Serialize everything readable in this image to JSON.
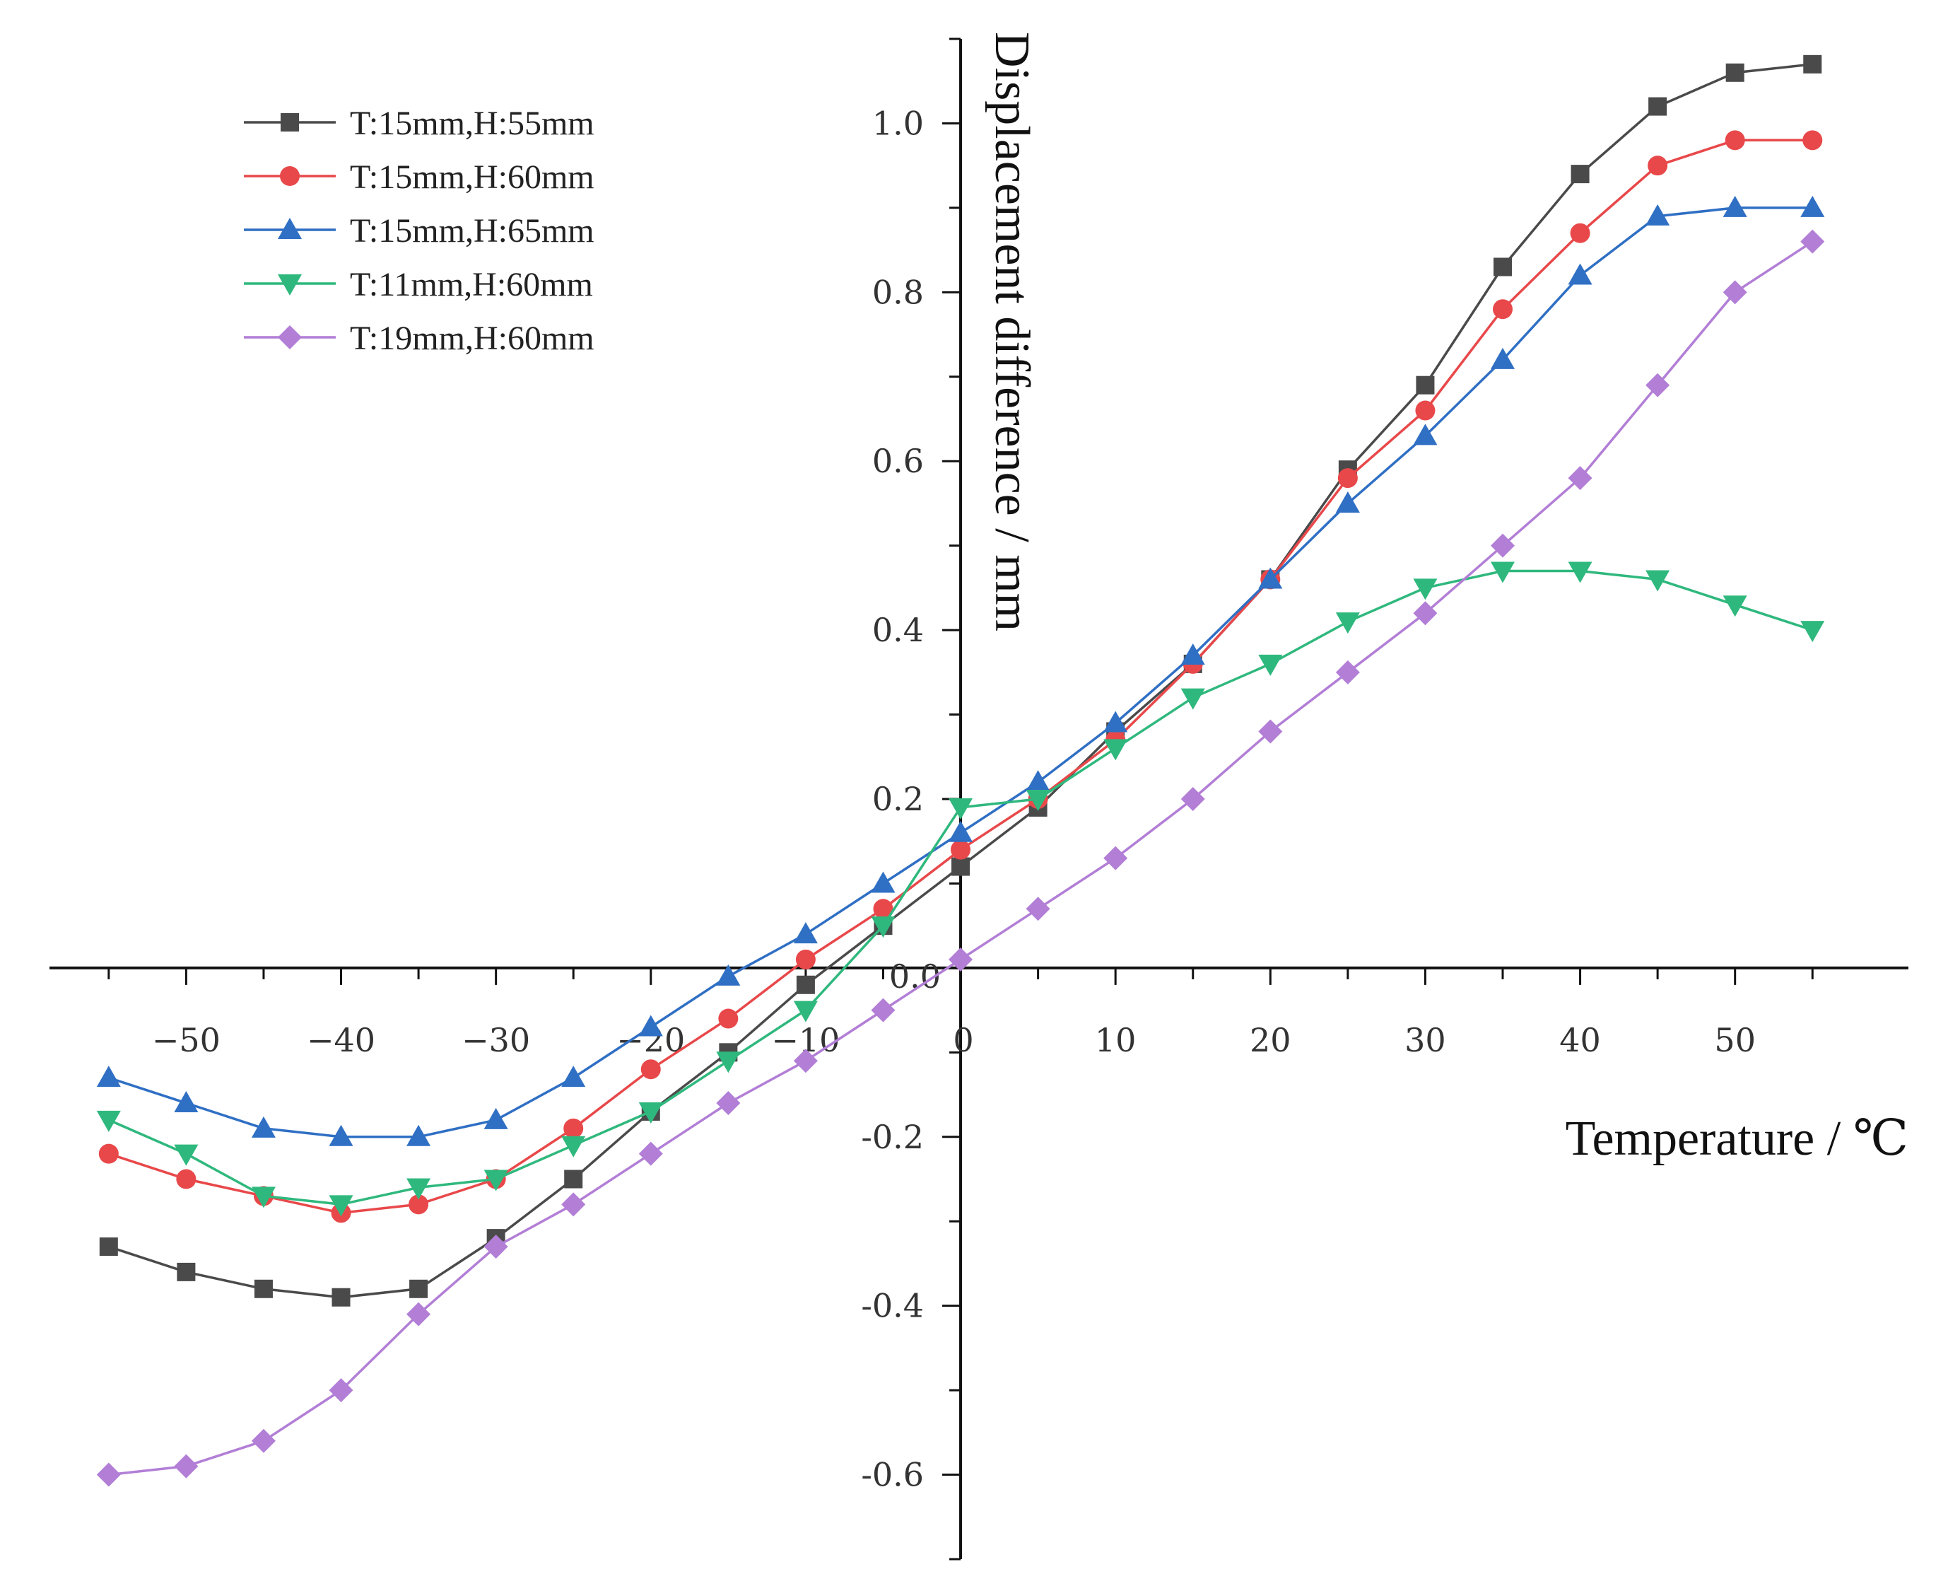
{
  "chart_data": {
    "type": "line",
    "title": "",
    "xlabel": "Temperature / ℃",
    "ylabel": "Displacement difference / mm",
    "xlim": [
      -57,
      58
    ],
    "ylim": [
      -0.7,
      1.1
    ],
    "xticks": [
      -50,
      -40,
      -30,
      -20,
      -10,
      0,
      10,
      20,
      30,
      40,
      50
    ],
    "xtick_labels": [
      "−50",
      "−40",
      "−30",
      "−20",
      "−10",
      "0",
      "10",
      "20",
      "30",
      "40",
      "50"
    ],
    "yticks": [
      -0.6,
      -0.4,
      -0.2,
      0.0,
      0.2,
      0.4,
      0.6,
      0.8,
      1.0
    ],
    "ytick_labels": [
      "-0.6",
      "-0.4",
      "-0.2",
      "0.0",
      "0.2",
      "0.4",
      "0.6",
      "0.8",
      "1.0"
    ],
    "legend_position": "top-left",
    "grid": false,
    "x": [
      -55,
      -50,
      -45,
      -40,
      -35,
      -30,
      -25,
      -20,
      -15,
      -10,
      -5,
      0,
      5,
      10,
      15,
      20,
      25,
      30,
      35,
      40,
      45,
      50,
      55
    ],
    "series": [
      {
        "name": "T:15mm,H:55mm",
        "marker": "square",
        "color": "#4a4a4a",
        "values": [
          -0.33,
          -0.36,
          -0.38,
          -0.39,
          -0.38,
          -0.32,
          -0.25,
          -0.17,
          -0.1,
          -0.02,
          0.05,
          0.12,
          0.19,
          0.28,
          0.36,
          0.46,
          0.59,
          0.69,
          0.83,
          0.94,
          1.02,
          1.06,
          1.07
        ]
      },
      {
        "name": "T:15mm,H:60mm",
        "marker": "circle",
        "color": "#e8484a",
        "values": [
          -0.22,
          -0.25,
          -0.27,
          -0.29,
          -0.28,
          -0.25,
          -0.19,
          -0.12,
          -0.06,
          0.01,
          0.07,
          0.14,
          0.2,
          0.27,
          0.36,
          0.46,
          0.58,
          0.66,
          0.78,
          0.87,
          0.95,
          0.98,
          0.98
        ]
      },
      {
        "name": "T:15mm,H:65mm",
        "marker": "triangle-up",
        "color": "#2f6fc4",
        "values": [
          -0.13,
          -0.16,
          -0.19,
          -0.2,
          -0.2,
          -0.18,
          -0.13,
          -0.07,
          -0.01,
          0.04,
          0.1,
          0.16,
          0.22,
          0.29,
          0.37,
          0.46,
          0.55,
          0.63,
          0.72,
          0.82,
          0.89,
          0.9,
          0.9
        ]
      },
      {
        "name": "T:11mm,H:60mm",
        "marker": "triangle-down",
        "color": "#2fb87d",
        "values": [
          -0.18,
          -0.22,
          -0.27,
          -0.28,
          -0.26,
          -0.25,
          -0.21,
          -0.17,
          -0.11,
          -0.05,
          0.05,
          0.19,
          0.2,
          0.26,
          0.32,
          0.36,
          0.41,
          0.45,
          0.47,
          0.47,
          0.46,
          0.43,
          0.4
        ]
      },
      {
        "name": "T:19mm,H:60mm",
        "marker": "diamond",
        "color": "#b27ed6",
        "values": [
          -0.6,
          -0.59,
          -0.56,
          -0.5,
          -0.41,
          -0.33,
          -0.28,
          -0.22,
          -0.16,
          -0.11,
          -0.05,
          0.01,
          0.07,
          0.13,
          0.2,
          0.28,
          0.35,
          0.42,
          0.5,
          0.58,
          0.69,
          0.8,
          0.86
        ]
      }
    ]
  }
}
